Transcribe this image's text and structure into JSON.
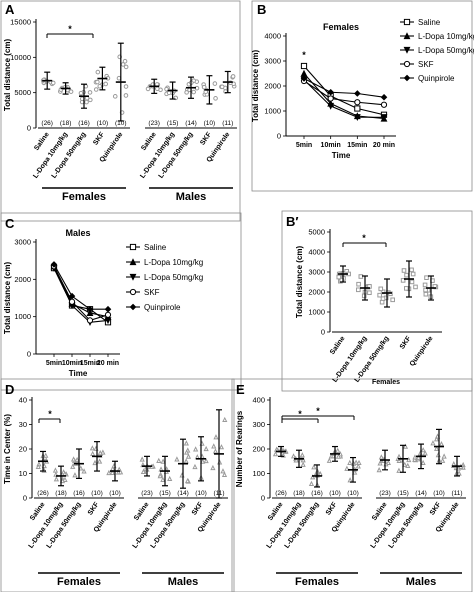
{
  "chart_data": [
    {
      "panel": "A",
      "type": "scatter",
      "ylabel": "Total distance (cm)",
      "ylim": [
        0,
        15000
      ],
      "yticks": [
        0,
        5000,
        10000,
        15000
      ],
      "groups": [
        {
          "name": "Females",
          "categories": [
            "Saline",
            "L-Dopa 10mg/kg",
            "L-Dopa 50mg/kg",
            "SKF",
            "Quinpirole"
          ],
          "n": [
            "(26)",
            "(18)",
            "(16)",
            "(10)",
            "(10)"
          ],
          "means": [
            6700,
            5600,
            4500,
            7000,
            6500
          ],
          "sd": [
            1200,
            800,
            1700,
            1600,
            5500
          ]
        },
        {
          "name": "Males",
          "categories": [
            "Saline",
            "L-Dopa 10mg/kg",
            "L-Dopa 50mg/kg",
            "SKF",
            "Quinpirole"
          ],
          "n": [
            "(23)",
            "(15)",
            "(14)",
            "(10)",
            "(11)"
          ],
          "means": [
            5900,
            5300,
            5700,
            5400,
            6500
          ],
          "sd": [
            1000,
            1200,
            1500,
            2000,
            1500
          ]
        }
      ],
      "significance": [
        {
          "between": [
            "Females:Saline",
            "Females:L-Dopa 50mg/kg"
          ],
          "label": "*"
        }
      ]
    },
    {
      "panel": "B",
      "type": "line",
      "title": "Females",
      "xlabel": "Time",
      "ylabel": "Total distance (cm)",
      "x": [
        "5min",
        "10min",
        "15min",
        "20 min"
      ],
      "ylim": [
        0,
        4000
      ],
      "yticks": [
        0,
        1000,
        2000,
        3000,
        4000
      ],
      "series": [
        {
          "name": "Saline",
          "marker": "square-open",
          "values": [
            2800,
            1600,
            1100,
            850
          ]
        },
        {
          "name": "L-Dopa 10mg/kg",
          "marker": "triangle-up",
          "values": [
            2500,
            1300,
            800,
            700
          ]
        },
        {
          "name": "L-Dopa 50mg/kg",
          "marker": "triangle-down",
          "values": [
            2250,
            1200,
            750,
            750
          ]
        },
        {
          "name": "SKF",
          "marker": "circle",
          "values": [
            2200,
            1500,
            1350,
            1250
          ]
        },
        {
          "name": "Quinpirole",
          "marker": "diamond",
          "values": [
            2300,
            1750,
            1700,
            1550
          ]
        }
      ],
      "annotations": [
        {
          "x": "5min",
          "label": "*"
        }
      ]
    },
    {
      "panel": "C",
      "type": "line",
      "title": "Males",
      "xlabel": "Time",
      "ylabel": "Total distance (cm)",
      "x": [
        "5min",
        "10min",
        "15min",
        "20 min"
      ],
      "ylim": [
        0,
        3000
      ],
      "yticks": [
        0,
        1000,
        2000,
        3000
      ],
      "series": [
        {
          "name": "Saline",
          "marker": "square-open",
          "values": [
            2300,
            1300,
            1200,
            850
          ]
        },
        {
          "name": "L-Dopa 10mg/kg",
          "marker": "triangle-up",
          "values": [
            2350,
            1350,
            1100,
            1000
          ]
        },
        {
          "name": "L-Dopa 50mg/kg",
          "marker": "triangle-down",
          "values": [
            2300,
            1300,
            850,
            900
          ]
        },
        {
          "name": "SKF",
          "marker": "circle",
          "values": [
            2350,
            1400,
            900,
            1050
          ]
        },
        {
          "name": "Quinpirole",
          "marker": "diamond",
          "values": [
            2400,
            1550,
            1200,
            1200
          ]
        }
      ]
    },
    {
      "panel": "B′",
      "type": "scatter",
      "ylabel": "Total distance (cm)",
      "ylim": [
        0,
        5000
      ],
      "yticks": [
        0,
        1000,
        2000,
        3000,
        4000,
        5000
      ],
      "groups": [
        {
          "name": "Females",
          "categories": [
            "Saline",
            "L-Dopa 10mg/kg",
            "L-Dopa 50mg/kg",
            "SKF",
            "Quinpirole"
          ],
          "n": [],
          "means": [
            2900,
            2200,
            1950,
            2650,
            2200
          ],
          "sd": [
            400,
            600,
            700,
            900,
            600
          ]
        }
      ],
      "significance": [
        {
          "between": [
            "Saline",
            "L-Dopa 50mg/kg"
          ],
          "label": "*"
        }
      ]
    },
    {
      "panel": "D",
      "type": "scatter",
      "ylabel": "Time in Center (%)",
      "ylim": [
        0,
        40
      ],
      "yticks": [
        0,
        10,
        20,
        30,
        40
      ],
      "groups": [
        {
          "name": "Females",
          "categories": [
            "Saline",
            "L-Dopa 10mg/kg",
            "L-Dopa 50mg/kg",
            "SKF",
            "Quinpirole"
          ],
          "n": [
            "(26)",
            "(18)",
            "(16)",
            "(10)",
            "(10)"
          ],
          "means": [
            15,
            9,
            14,
            17,
            11
          ],
          "sd": [
            4,
            4,
            6,
            6,
            4
          ]
        },
        {
          "name": "Males",
          "categories": [
            "Saline",
            "L-Dopa 10mg/kg",
            "L-Dopa 50mg/kg",
            "SKF",
            "Quinpirole"
          ],
          "n": [
            "(23)",
            "(15)",
            "(14)",
            "(10)",
            "(11)"
          ],
          "means": [
            13,
            11,
            14,
            16,
            18
          ],
          "sd": [
            4,
            6,
            10,
            9,
            18
          ]
        }
      ],
      "significance": [
        {
          "between": [
            "Females:Saline",
            "Females:L-Dopa 10mg/kg"
          ],
          "label": "*"
        }
      ]
    },
    {
      "panel": "E",
      "type": "scatter",
      "ylabel": "Number of Rearings",
      "ylim": [
        0,
        400
      ],
      "yticks": [
        0,
        100,
        200,
        300,
        400
      ],
      "groups": [
        {
          "name": "Females",
          "categories": [
            "Saline",
            "L-Dopa 10mg/kg",
            "L-Dopa 50mg/kg",
            "SKF",
            "Quinpirole"
          ],
          "n": [
            "(26)",
            "(18)",
            "(16)",
            "(10)",
            "(10)"
          ],
          "means": [
            190,
            160,
            90,
            180,
            115
          ],
          "sd": [
            20,
            35,
            45,
            30,
            50
          ]
        },
        {
          "name": "Males",
          "categories": [
            "Saline",
            "L-Dopa 10mg/kg",
            "L-Dopa 50mg/kg",
            "SKF",
            "Quinpirole"
          ],
          "n": [
            "(23)",
            "(15)",
            "(14)",
            "(10)",
            "(11)"
          ],
          "means": [
            155,
            160,
            170,
            210,
            130
          ],
          "sd": [
            40,
            55,
            50,
            70,
            40
          ]
        }
      ],
      "significance": [
        {
          "between": [
            "Females:Saline",
            "Females:L-Dopa 50mg/kg"
          ],
          "label": "*"
        },
        {
          "between": [
            "Females:Saline",
            "Females:Quinpirole"
          ],
          "label": "*"
        }
      ]
    }
  ]
}
